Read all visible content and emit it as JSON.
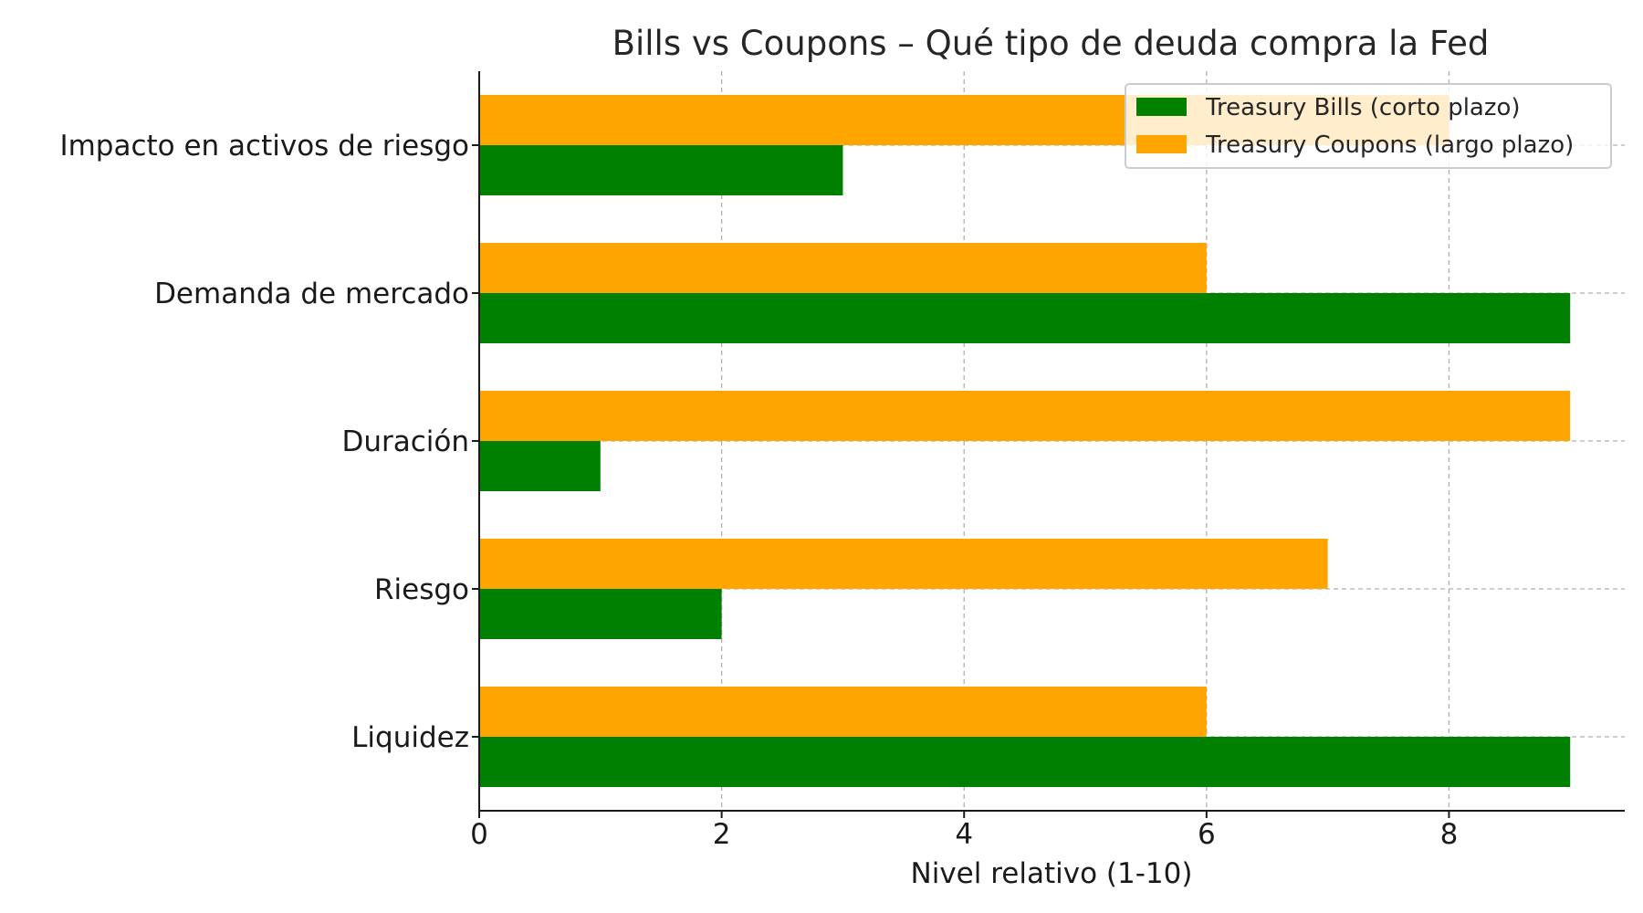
{
  "chart_data": {
    "type": "bar",
    "orientation": "horizontal",
    "title": "Bills vs Coupons – Qué tipo de deuda compra la Fed",
    "xlabel": "Nivel relativo (1-10)",
    "ylabel": "",
    "categories": [
      "Liquidez",
      "Riesgo",
      "Duración",
      "Demanda de mercado",
      "Impacto en activos de riesgo"
    ],
    "series": [
      {
        "name": "Treasury Bills (corto plazo)",
        "color": "#008000",
        "values": [
          9,
          2,
          1,
          9,
          3
        ]
      },
      {
        "name": "Treasury Coupons (largo plazo)",
        "color": "#FFA500",
        "values": [
          6,
          7,
          9,
          6,
          8
        ]
      }
    ],
    "xlim": [
      0,
      9.45
    ],
    "xticks": [
      "0",
      "2",
      "4",
      "6",
      "8"
    ],
    "grid": true,
    "legend_position": "top-right"
  }
}
